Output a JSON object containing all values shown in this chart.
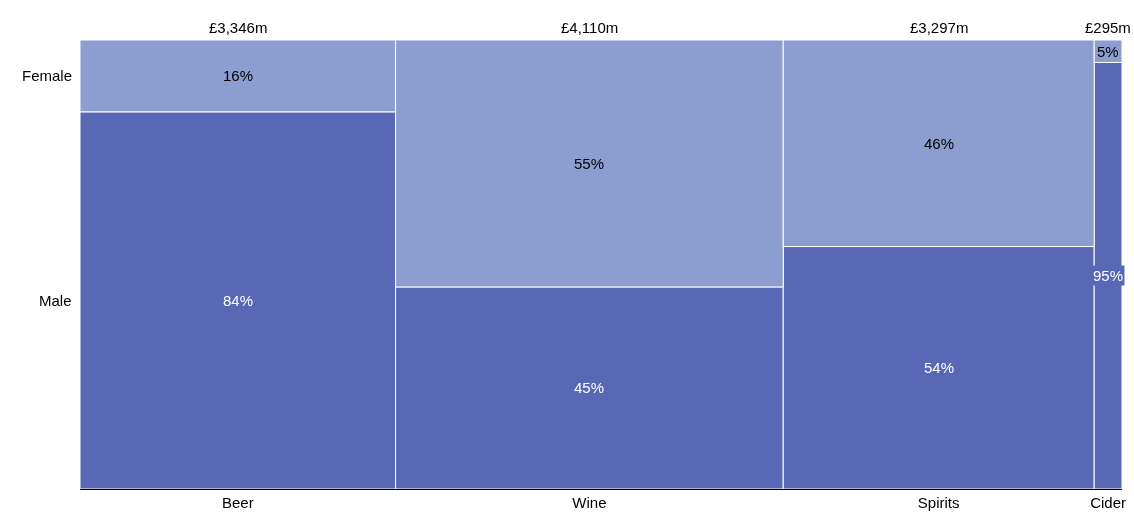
{
  "chart_data": {
    "type": "bar",
    "stacked": true,
    "categories": [
      "Beer",
      "Wine",
      "Spirits",
      "Cider"
    ],
    "annotations": [
      {
        "text": "£3,346m",
        "x": "Beer",
        "y": 100
      },
      {
        "text": "£4,110m",
        "x": "Wine",
        "y": 100
      },
      {
        "text": "£3,297m",
        "x": "Spirits",
        "y": 100
      },
      {
        "text": "£295m",
        "x": "Cider",
        "y": 100
      }
    ],
    "series": [
      {
        "name": "Male",
        "color": "#5868b4",
        "values": [
          84,
          45,
          54,
          95
        ],
        "value_labels": [
          "84%",
          "45%",
          "54%",
          "95%"
        ]
      },
      {
        "name": "Female",
        "color": "#8c9dcf",
        "values": [
          16,
          55,
          46,
          5
        ],
        "value_labels": [
          "16%",
          "55%",
          "46%",
          "5%"
        ]
      }
    ],
    "legend": false
  }
}
